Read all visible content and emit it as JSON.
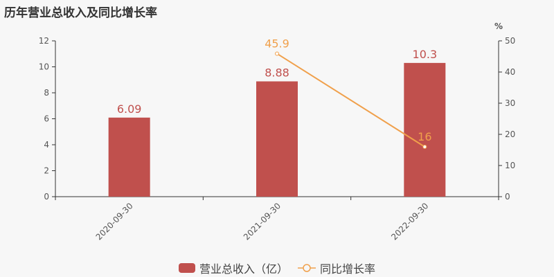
{
  "title": "历年营业总收入及同比增长率",
  "chart_data": {
    "type": "bar+line",
    "categories": [
      "2020-09-30",
      "2021-09-30",
      "2022-09-30"
    ],
    "series": [
      {
        "name": "营业总收入（亿）",
        "type": "bar",
        "axis": "left",
        "values": [
          6.09,
          8.88,
          10.3
        ],
        "labels": [
          "6.09",
          "8.88",
          "10.3"
        ],
        "color": "#c0504d"
      },
      {
        "name": "同比增长率",
        "type": "line",
        "axis": "right",
        "values": [
          null,
          45.9,
          16
        ],
        "labels": [
          "",
          "45.9",
          "16"
        ],
        "color": "#f0a04b"
      }
    ],
    "left_axis": {
      "ylim": [
        0,
        12
      ],
      "ticks": [
        "0",
        "2",
        "4",
        "6",
        "8",
        "10",
        "12"
      ]
    },
    "right_axis": {
      "label": "%",
      "ylim": [
        0,
        50
      ],
      "ticks": [
        "0",
        "10",
        "20",
        "30",
        "40",
        "50"
      ]
    },
    "grid": false,
    "legend": "bottom"
  }
}
